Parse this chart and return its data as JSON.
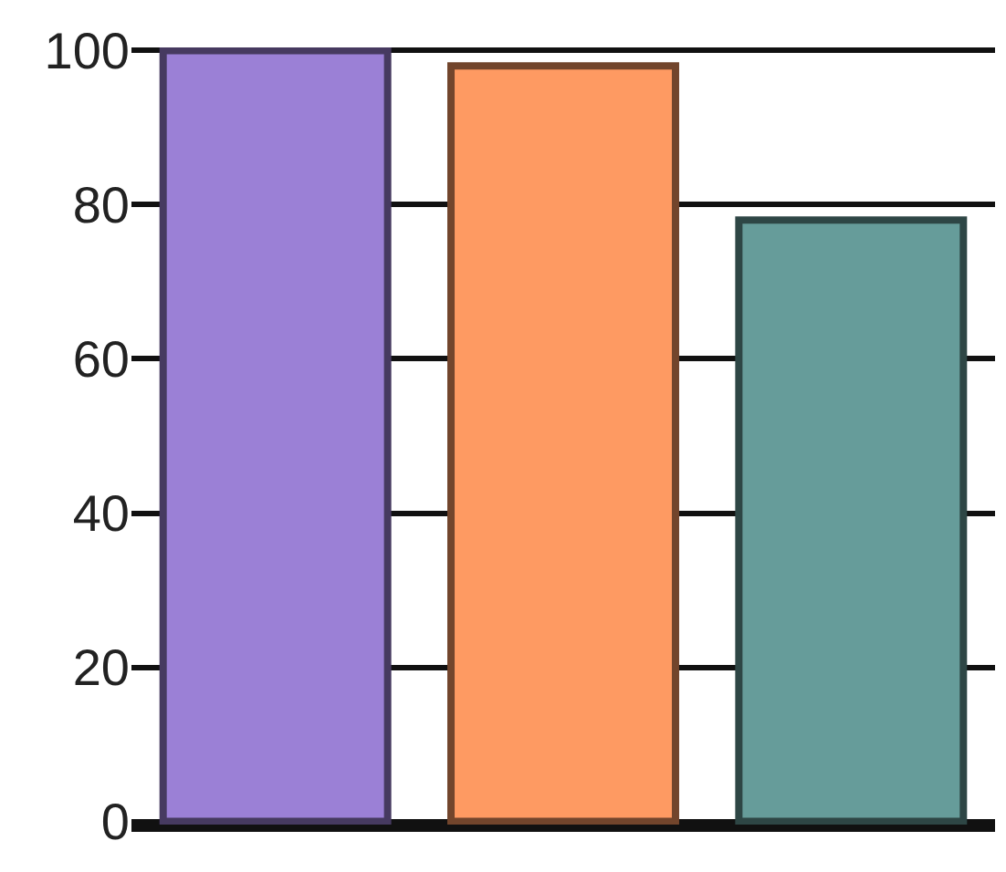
{
  "chart_data": {
    "type": "bar",
    "categories": [
      null,
      null,
      null
    ],
    "values": [
      100,
      98,
      78
    ],
    "colors": [
      "#9b80d6",
      "#fe9a62",
      "#669c9a"
    ],
    "ylim": [
      0,
      100
    ],
    "yticks": [
      0,
      20,
      40,
      60,
      80,
      100
    ],
    "grid": "y",
    "tick_labels": "y"
  }
}
